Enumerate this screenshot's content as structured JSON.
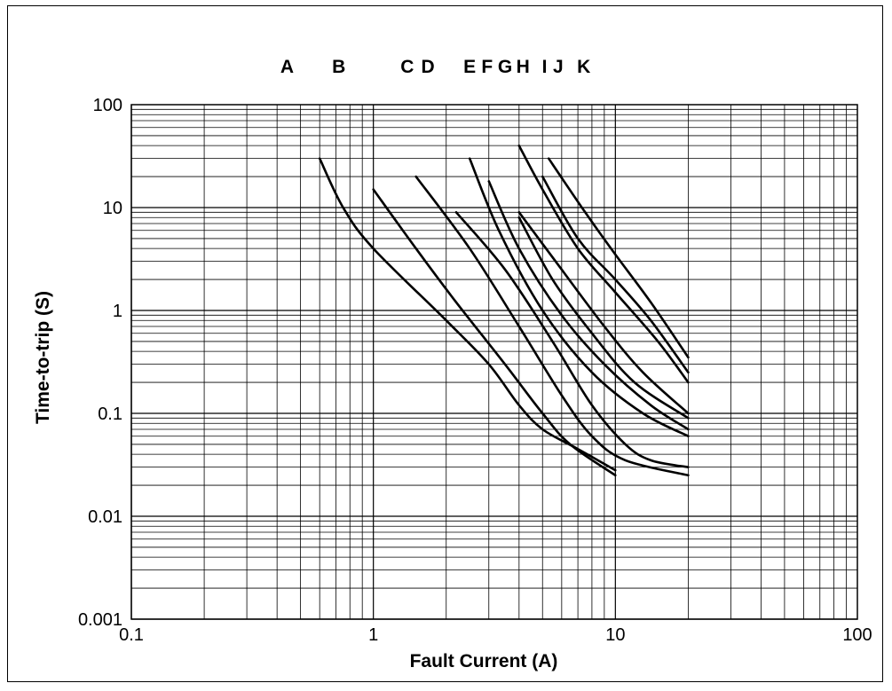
{
  "chart_data": {
    "type": "line",
    "title": "",
    "xlabel": "Fault Current (A)",
    "ylabel": "Time-to-trip (S)",
    "x_scale": "log",
    "y_scale": "log",
    "xlim": [
      0.1,
      100
    ],
    "ylim": [
      0.001,
      100
    ],
    "x_ticks": [
      {
        "value": 0.1,
        "label": "0.1"
      },
      {
        "value": 1,
        "label": "1"
      },
      {
        "value": 10,
        "label": "10"
      },
      {
        "value": 100,
        "label": "100"
      }
    ],
    "y_ticks": [
      {
        "value": 0.001,
        "label": "0.001"
      },
      {
        "value": 0.01,
        "label": "0.01"
      },
      {
        "value": 0.1,
        "label": "0.1"
      },
      {
        "value": 1,
        "label": "1"
      },
      {
        "value": 10,
        "label": "10"
      },
      {
        "value": 100,
        "label": "100"
      }
    ],
    "grid": true,
    "legend": "none",
    "line_color": "#000000",
    "series": [
      {
        "name": "A",
        "label_x": 0.44,
        "points": [
          [
            0.6,
            30
          ],
          [
            0.75,
            10
          ],
          [
            1.0,
            4.0
          ],
          [
            2.0,
            0.8
          ],
          [
            3.0,
            0.3
          ],
          [
            4.0,
            0.12
          ],
          [
            5.0,
            0.07
          ],
          [
            7.0,
            0.045
          ],
          [
            10.0,
            0.028
          ]
        ]
      },
      {
        "name": "B",
        "label_x": 0.72,
        "points": [
          [
            1.0,
            15
          ],
          [
            1.5,
            4.0
          ],
          [
            2.2,
            1.2
          ],
          [
            3.5,
            0.3
          ],
          [
            5.0,
            0.1
          ],
          [
            6.5,
            0.05
          ],
          [
            10.0,
            0.025
          ]
        ]
      },
      {
        "name": "C",
        "label_x": 1.38,
        "points": [
          [
            1.5,
            20
          ],
          [
            2.5,
            4.0
          ],
          [
            4.0,
            0.7
          ],
          [
            6.0,
            0.15
          ],
          [
            8.0,
            0.06
          ],
          [
            11.0,
            0.035
          ],
          [
            20.0,
            0.025
          ]
        ]
      },
      {
        "name": "D",
        "label_x": 1.68,
        "points": [
          [
            2.2,
            9
          ],
          [
            3.5,
            2.5
          ],
          [
            5.5,
            0.5
          ],
          [
            8.0,
            0.12
          ],
          [
            11.0,
            0.05
          ],
          [
            14.0,
            0.035
          ],
          [
            20.0,
            0.03
          ]
        ]
      },
      {
        "name": "E",
        "label_x": 2.5,
        "points": [
          [
            2.5,
            30
          ],
          [
            3.3,
            6.0
          ],
          [
            5.0,
            1.0
          ],
          [
            8.0,
            0.25
          ],
          [
            13.0,
            0.1
          ],
          [
            20.0,
            0.06
          ]
        ]
      },
      {
        "name": "F",
        "label_x": 2.95,
        "points": [
          [
            3.0,
            18
          ],
          [
            4.0,
            4.0
          ],
          [
            6.0,
            0.9
          ],
          [
            9.0,
            0.3
          ],
          [
            14.0,
            0.12
          ],
          [
            20.0,
            0.07
          ]
        ]
      },
      {
        "name": "G",
        "label_x": 3.5,
        "points": [
          [
            4.0,
            8.0
          ],
          [
            5.5,
            2.0
          ],
          [
            8.0,
            0.6
          ],
          [
            12.0,
            0.2
          ],
          [
            20.0,
            0.09
          ]
        ]
      },
      {
        "name": "H",
        "label_x": 4.15,
        "points": [
          [
            4.0,
            9.0
          ],
          [
            6.0,
            2.5
          ],
          [
            9.0,
            0.7
          ],
          [
            13.0,
            0.25
          ],
          [
            20.0,
            0.1
          ]
        ]
      },
      {
        "name": "I",
        "label_x": 5.1,
        "points": [
          [
            4.0,
            40
          ],
          [
            5.0,
            15
          ],
          [
            7.0,
            4.0
          ],
          [
            10.0,
            1.5
          ],
          [
            15.0,
            0.5
          ],
          [
            20.0,
            0.2
          ]
        ]
      },
      {
        "name": "J",
        "label_x": 5.8,
        "points": [
          [
            5.0,
            20
          ],
          [
            7.0,
            5.0
          ],
          [
            10.0,
            2.0
          ],
          [
            14.0,
            0.8
          ],
          [
            20.0,
            0.25
          ]
        ]
      },
      {
        "name": "K",
        "label_x": 7.4,
        "points": [
          [
            5.3,
            30
          ],
          [
            7.5,
            9.0
          ],
          [
            10.0,
            3.5
          ],
          [
            14.0,
            1.2
          ],
          [
            20.0,
            0.35
          ]
        ]
      }
    ]
  }
}
